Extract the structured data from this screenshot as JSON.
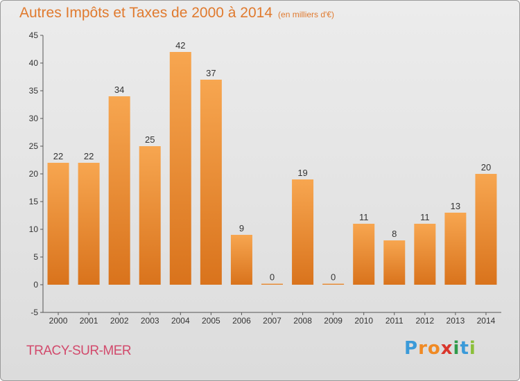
{
  "title": "Autres Impôts et Taxes de 2000 à 2014",
  "subtitle": "(en milliers d'€)",
  "commune": "TRACY-SUR-MER",
  "logo": [
    "P",
    "r",
    "o",
    "x",
    "i",
    "t",
    "i"
  ],
  "colors": {
    "bar_top": "#f7a650",
    "bar_bottom": "#d9731c",
    "title": "#e07a2e",
    "commune": "#d24a6c"
  },
  "chart_data": {
    "type": "bar",
    "title": "Autres Impôts et Taxes de 2000 à 2014",
    "subtitle": "(en milliers d'€)",
    "categories": [
      "2000",
      "2001",
      "2002",
      "2003",
      "2004",
      "2005",
      "2006",
      "2007",
      "2008",
      "2009",
      "2010",
      "2011",
      "2012",
      "2013",
      "2014"
    ],
    "values": [
      22,
      22,
      34,
      25,
      42,
      37,
      9,
      0,
      19,
      0,
      11,
      8,
      11,
      13,
      20
    ],
    "ylim": [
      -5,
      45
    ],
    "yticks": [
      -5,
      0,
      5,
      10,
      15,
      20,
      25,
      30,
      35,
      40,
      45
    ],
    "grid": false
  }
}
